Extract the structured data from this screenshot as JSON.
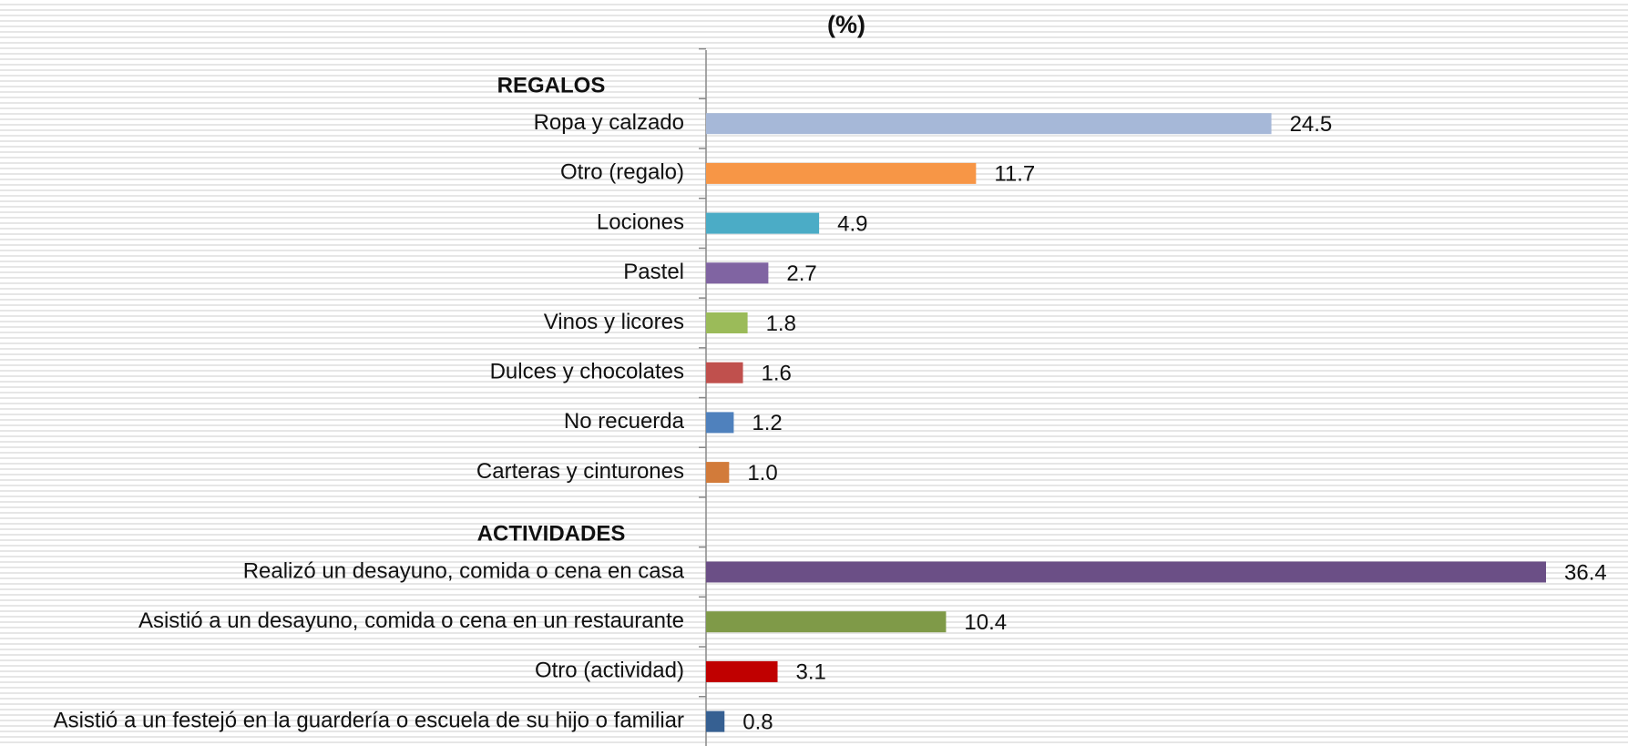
{
  "chart_data": {
    "type": "bar",
    "orientation": "horizontal",
    "title": "(%)",
    "categories": [
      "REGALOS",
      "Ropa y calzado",
      "Otro (regalo)",
      "Lociones",
      "Pastel",
      "Vinos y licores",
      "Dulces  y chocolates",
      "No recuerda",
      "Carteras y cinturones",
      "ACTIVIDADES",
      "Realizó un desayuno, comida o cena en casa",
      "Asistió a un  desayuno, comida o cena en un restaurante",
      "Otro (actividad)",
      "Asistió a un festejó en la guardería o escuela de su hijo o familiar"
    ],
    "values": [
      null,
      24.5,
      11.7,
      4.9,
      2.7,
      1.8,
      1.6,
      1.2,
      1.0,
      null,
      36.4,
      10.4,
      3.1,
      0.8
    ],
    "value_labels": [
      null,
      "24.5",
      "11.7",
      "4.9",
      "2.7",
      "1.8",
      "1.6",
      "1.2",
      "1.0",
      null,
      "36.4",
      "10.4",
      "3.1",
      "0.8"
    ],
    "colors": [
      null,
      "#a6b8d8",
      "#f79646",
      "#4bacc6",
      "#8064a2",
      "#9bbb59",
      "#c0504d",
      "#4f81bd",
      "#d27b3a",
      null,
      "#6b4f86",
      "#7f9a48",
      "#c00000",
      "#366092"
    ]
  }
}
